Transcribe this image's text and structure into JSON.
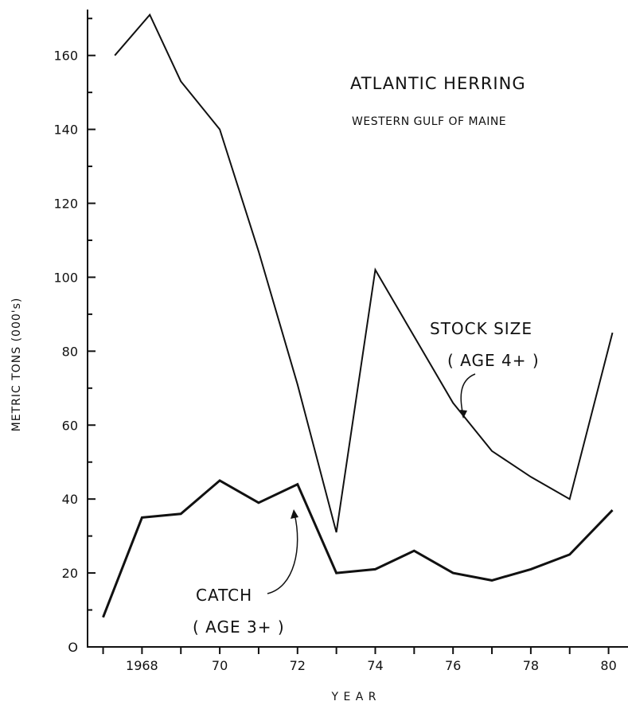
{
  "chart_data": {
    "type": "line",
    "title": "ATLANTIC HERRING",
    "subtitle": "WESTERN GULF OF MAINE",
    "xlabel": "Y E A R",
    "ylabel": "METRIC TONS (000's)",
    "xlim": [
      1966.6,
      1980.5
    ],
    "ylim": [
      0,
      175
    ],
    "y_ticks": [
      0,
      20,
      40,
      60,
      80,
      100,
      120,
      140,
      160
    ],
    "y_tick_labels": [
      "O",
      "20",
      "40",
      "60",
      "80",
      "100",
      "120",
      "140",
      "160"
    ],
    "x_ticks": [
      1967,
      1968,
      1969,
      1970,
      1971,
      1972,
      1973,
      1974,
      1975,
      1976,
      1977,
      1978,
      1979,
      1980
    ],
    "x_tick_labels": [
      {
        "x": 1968,
        "text": "1968"
      },
      {
        "x": 1970,
        "text": "70"
      },
      {
        "x": 1972,
        "text": "72"
      },
      {
        "x": 1974,
        "text": "74"
      },
      {
        "x": 1976,
        "text": "76"
      },
      {
        "x": 1978,
        "text": "78"
      },
      {
        "x": 1980,
        "text": "80"
      }
    ],
    "grid": false,
    "series": [
      {
        "name": "STOCK SIZE (AGE 4+)",
        "x": [
          1967.3,
          1968.2,
          1969,
          1970,
          1971,
          1972,
          1973,
          1974,
          1975,
          1976,
          1977,
          1978,
          1979,
          1980.1
        ],
        "values": [
          160,
          171,
          153,
          140,
          107,
          71,
          31,
          102,
          84,
          66,
          53,
          46,
          40,
          85
        ]
      },
      {
        "name": "CATCH (AGE 3+)",
        "x": [
          1967,
          1968,
          1969,
          1970,
          1971,
          1972,
          1973,
          1974,
          1975,
          1976,
          1977,
          1978,
          1979,
          1980.1
        ],
        "values": [
          8,
          35,
          36,
          45,
          39,
          44,
          20,
          21,
          26,
          20,
          18,
          21,
          25,
          37
        ]
      }
    ],
    "annotations": {
      "stock_line1": "STOCK SIZE",
      "stock_line2": "( AGE 4+ )",
      "catch_line1": "CATCH",
      "catch_line2": "( AGE 3+ )"
    }
  }
}
